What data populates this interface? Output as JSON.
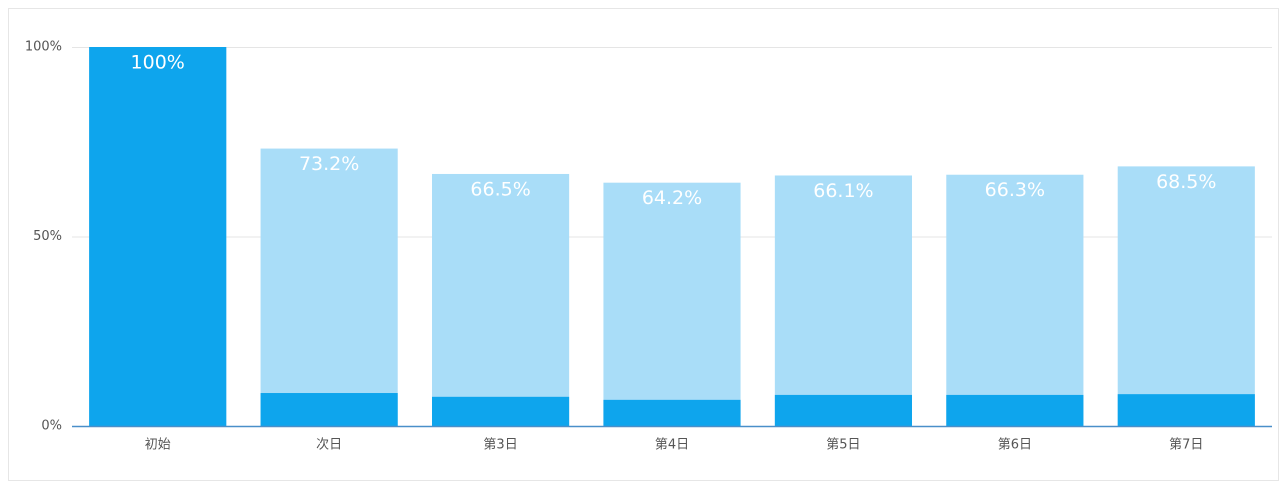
{
  "chart_data": {
    "type": "bar",
    "categories": [
      "初始",
      "次日",
      "第3日",
      "第4日",
      "第5日",
      "第6日",
      "第7日"
    ],
    "series": [
      {
        "color": "#a9ddf8",
        "values": [
          100,
          73.2,
          66.5,
          64.2,
          66.1,
          66.3,
          68.5
        ],
        "value_labels": [
          "100%",
          "73.2%",
          "66.5%",
          "64.2%",
          "66.1%",
          "66.3%",
          "68.5%"
        ]
      },
      {
        "color": "#0ea5ed",
        "values": [
          100,
          8.7,
          7.7,
          6.9,
          8.2,
          8.2,
          8.4
        ]
      }
    ],
    "ylim": [
      0,
      100
    ],
    "yticks": [
      {
        "value": 0,
        "label": "0%"
      },
      {
        "value": 50,
        "label": "50%"
      },
      {
        "value": 100,
        "label": "100%"
      }
    ],
    "grid": true
  }
}
